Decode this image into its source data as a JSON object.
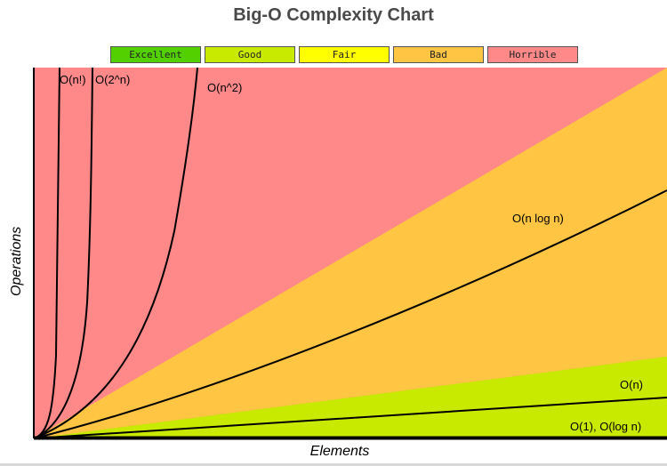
{
  "chart_data": {
    "type": "line",
    "title": "Big-O Complexity Chart",
    "xlabel": "Elements",
    "ylabel": "Operations",
    "legend": {
      "placement": "top",
      "entries": [
        {
          "label": "Excellent",
          "color": "#53d000"
        },
        {
          "label": "Good",
          "color": "#c8ea00"
        },
        {
          "label": "Fair",
          "color": "#ffff00"
        },
        {
          "label": "Bad",
          "color": "#ffc543"
        },
        {
          "label": "Horrible",
          "color": "#ff8989"
        }
      ]
    },
    "regions": [
      {
        "name": "Horrible",
        "color": "#ff8989"
      },
      {
        "name": "Bad",
        "color": "#ffc543"
      },
      {
        "name": "Good",
        "color": "#c8ea00"
      }
    ],
    "series": [
      {
        "name": "O(n!)"
      },
      {
        "name": "O(2^n)"
      },
      {
        "name": "O(n^2)"
      },
      {
        "name": "O(n log n)"
      },
      {
        "name": "O(n)"
      },
      {
        "name": "O(1), O(log n)"
      }
    ]
  }
}
